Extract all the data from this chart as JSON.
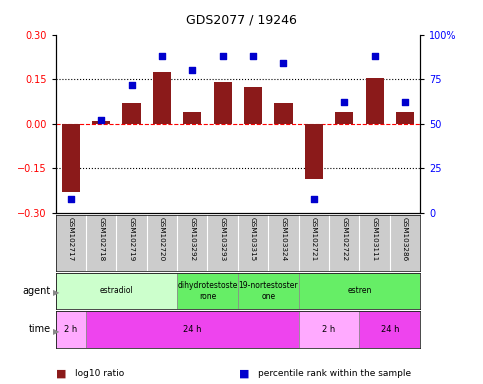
{
  "title": "GDS2077 / 19246",
  "samples": [
    "GSM102717",
    "GSM102718",
    "GSM102719",
    "GSM102720",
    "GSM103292",
    "GSM103293",
    "GSM103315",
    "GSM103324",
    "GSM102721",
    "GSM102722",
    "GSM103111",
    "GSM103286"
  ],
  "log10_ratio": [
    -0.23,
    0.01,
    0.07,
    0.175,
    0.04,
    0.14,
    0.125,
    0.07,
    -0.185,
    0.04,
    0.155,
    0.04
  ],
  "percentile_rank": [
    8,
    52,
    72,
    88,
    80,
    88,
    88,
    84,
    8,
    62,
    88,
    62
  ],
  "bar_color": "#8B1A1A",
  "dot_color": "#0000CD",
  "ylim_left": [
    -0.3,
    0.3
  ],
  "ylim_right": [
    0,
    100
  ],
  "yticks_left": [
    -0.3,
    -0.15,
    0.0,
    0.15,
    0.3
  ],
  "yticks_right": [
    0,
    25,
    50,
    75,
    100
  ],
  "right_tick_labels": [
    "0",
    "25",
    "50",
    "75",
    "100%"
  ],
  "hlines": [
    0.15,
    -0.15
  ],
  "zeroline_color": "#FF0000",
  "agent_groups": [
    {
      "label": "estradiol",
      "start": 0,
      "end": 4,
      "color": "#CCFFCC"
    },
    {
      "label": "dihydrotestoste\nrone",
      "start": 4,
      "end": 6,
      "color": "#66EE66"
    },
    {
      "label": "19-nortestoster\none",
      "start": 6,
      "end": 8,
      "color": "#66EE66"
    },
    {
      "label": "estren",
      "start": 8,
      "end": 12,
      "color": "#66EE66"
    }
  ],
  "time_groups": [
    {
      "label": "2 h",
      "start": 0,
      "end": 1,
      "color": "#FFAAFF"
    },
    {
      "label": "24 h",
      "start": 1,
      "end": 8,
      "color": "#EE44EE"
    },
    {
      "label": "2 h",
      "start": 8,
      "end": 10,
      "color": "#FFAAFF"
    },
    {
      "label": "24 h",
      "start": 10,
      "end": 12,
      "color": "#EE44EE"
    }
  ],
  "sample_box_color": "#CCCCCC",
  "legend_items": [
    {
      "color": "#8B1A1A",
      "label": "log10 ratio"
    },
    {
      "color": "#0000CD",
      "label": "percentile rank within the sample"
    }
  ],
  "fig_width": 4.83,
  "fig_height": 3.84,
  "dpi": 100
}
